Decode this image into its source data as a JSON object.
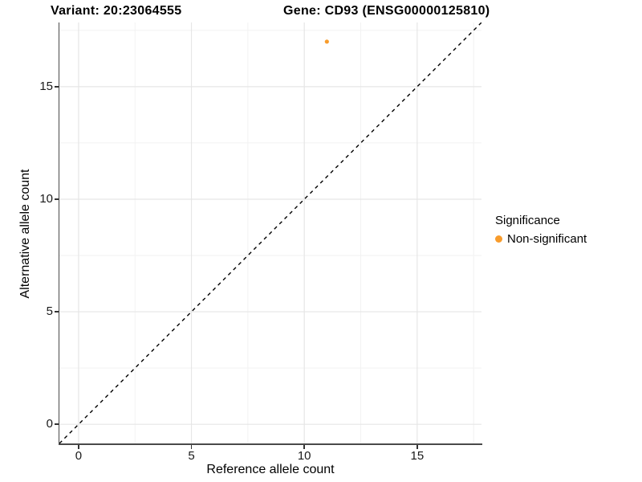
{
  "chart_data": {
    "type": "scatter",
    "titles": {
      "left": "Variant: 20:23064555",
      "right": "Gene: CD93 (ENSG00000125810)"
    },
    "xlabel": "Reference allele count",
    "ylabel": "Alternative allele count",
    "xlim": [
      -0.85,
      17.85
    ],
    "ylim": [
      -0.85,
      17.85
    ],
    "x_ticks": [
      0,
      5,
      10,
      15
    ],
    "y_ticks": [
      0,
      5,
      10,
      15
    ],
    "x_minor_ticks": [
      2.5,
      7.5,
      12.5,
      17.5
    ],
    "y_minor_ticks": [
      2.5,
      7.5,
      12.5,
      17.5
    ],
    "grid": "major-and-minor",
    "points": [
      {
        "x": 11,
        "y": 17,
        "series": "Non-significant"
      }
    ],
    "reference_line": {
      "kind": "identity",
      "slope": 1,
      "intercept": 0,
      "style": "dashed",
      "color": "#000000"
    },
    "series_colors": {
      "Non-significant": "#F89C2C"
    },
    "legend": {
      "title": "Significance",
      "position": "right",
      "items": [
        {
          "label": "Non-significant",
          "color": "#F89C2C"
        }
      ]
    },
    "colors": {
      "background": "#FFFFFF",
      "grid_major": "#E6E6E6",
      "grid_minor": "#F2F2F2",
      "axis_line": "#4A4A4A",
      "tick_mark": "#333333",
      "text": "#000000"
    }
  }
}
